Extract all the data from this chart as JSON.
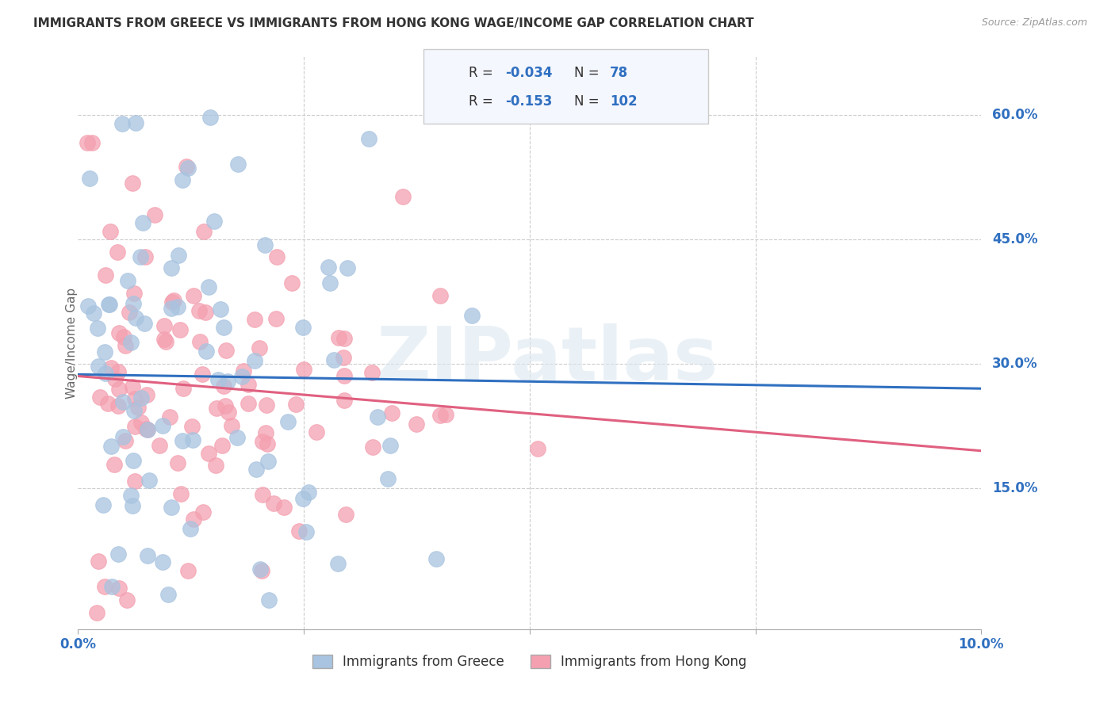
{
  "title": "IMMIGRANTS FROM GREECE VS IMMIGRANTS FROM HONG KONG WAGE/INCOME GAP CORRELATION CHART",
  "source": "Source: ZipAtlas.com",
  "ylabel": "Wage/Income Gap",
  "y_ticks": [
    0.15,
    0.3,
    0.45,
    0.6
  ],
  "y_tick_labels": [
    "15.0%",
    "30.0%",
    "45.0%",
    "60.0%"
  ],
  "x_min": 0.0,
  "x_max": 0.1,
  "y_min": -0.02,
  "y_max": 0.67,
  "greece_R": -0.034,
  "greece_N": 78,
  "hk_R": -0.153,
  "hk_N": 102,
  "greece_color": "#a8c4e0",
  "hk_color": "#f4a0b0",
  "greece_line_color": "#3070c0",
  "hk_line_color": "#e06080",
  "watermark": "ZIPatlas",
  "title_color": "#333333",
  "label_color": "#3070c0",
  "legend_text_color": "#3070c0",
  "seed": 99
}
